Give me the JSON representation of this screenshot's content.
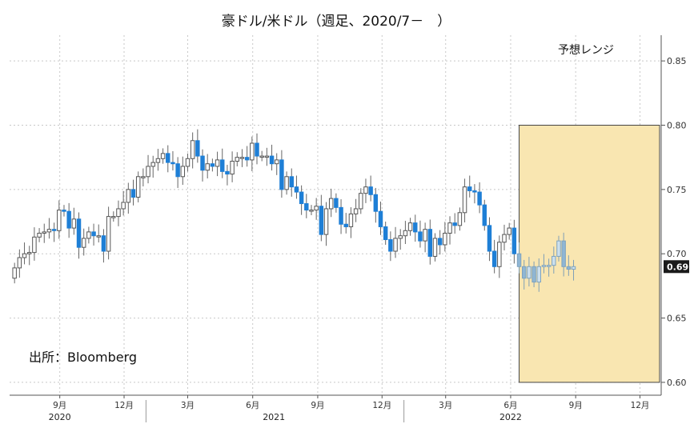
{
  "chart_data": {
    "type": "candlestick",
    "title": "豪ドル/米ドル（週足、2020/7－　）",
    "source_note": "出所：Bloomberg",
    "range_box": {
      "label": "予想レンジ",
      "x_from": "2022-06-13",
      "x_to": "2022-12-31",
      "y_from": 0.6,
      "y_to": 0.8
    },
    "last_value_label": "0.69",
    "last_value": 0.69,
    "ylim": [
      0.59,
      0.87
    ],
    "yticks": [
      {
        "value": 0.6,
        "label": "0.60"
      },
      {
        "value": 0.65,
        "label": "0.65"
      },
      {
        "value": 0.7,
        "label": "0.70"
      },
      {
        "value": 0.75,
        "label": "0.75"
      },
      {
        "value": 0.8,
        "label": "0.80"
      },
      {
        "value": 0.85,
        "label": "0.85"
      }
    ],
    "xlim": [
      "2020-06-22",
      "2022-12-31"
    ],
    "xticks": [
      {
        "date": "2020-09-01",
        "label": "9月"
      },
      {
        "date": "2020-12-01",
        "label": "12月"
      },
      {
        "date": "2021-03-01",
        "label": "3月"
      },
      {
        "date": "2021-06-01",
        "label": "6月"
      },
      {
        "date": "2021-09-01",
        "label": "9月"
      },
      {
        "date": "2021-12-01",
        "label": "12月"
      },
      {
        "date": "2022-03-01",
        "label": "3月"
      },
      {
        "date": "2022-06-01",
        "label": "6月"
      },
      {
        "date": "2022-09-01",
        "label": "9月"
      },
      {
        "date": "2022-12-01",
        "label": "12月"
      }
    ],
    "years": [
      {
        "label": "2020",
        "center": "2020-09-01"
      },
      {
        "label": "2021",
        "center": "2021-07-01"
      },
      {
        "label": "2022",
        "center": "2022-06-01"
      }
    ],
    "year_dividers": [
      "2021-01-01",
      "2022-01-01"
    ],
    "colors": {
      "up": "#ffffff",
      "up_edge": "#555555",
      "down": "#1e7fd6",
      "down_edge": "#1e7fd6",
      "projected_up": "#cde0ee",
      "projected_down": "#8fb6d4",
      "box_fill": "#f9e6b1",
      "box_edge": "#444444",
      "grid": "#c8c8c8"
    },
    "series_start": "2020-06-29",
    "series_week_days": 7,
    "projected_from": "2022-06-13",
    "closes": [
      0.689,
      0.697,
      0.7,
      0.701,
      0.713,
      0.716,
      0.717,
      0.719,
      0.718,
      0.734,
      0.733,
      0.72,
      0.727,
      0.705,
      0.712,
      0.717,
      0.714,
      0.714,
      0.702,
      0.729,
      0.729,
      0.735,
      0.74,
      0.75,
      0.744,
      0.76,
      0.76,
      0.768,
      0.771,
      0.774,
      0.778,
      0.771,
      0.77,
      0.76,
      0.768,
      0.774,
      0.788,
      0.776,
      0.765,
      0.77,
      0.768,
      0.773,
      0.764,
      0.762,
      0.772,
      0.775,
      0.775,
      0.773,
      0.786,
      0.776,
      0.776,
      0.776,
      0.77,
      0.773,
      0.75,
      0.76,
      0.752,
      0.748,
      0.739,
      0.734,
      0.734,
      0.737,
      0.715,
      0.735,
      0.743,
      0.736,
      0.723,
      0.721,
      0.731,
      0.735,
      0.747,
      0.752,
      0.746,
      0.733,
      0.721,
      0.711,
      0.702,
      0.712,
      0.714,
      0.718,
      0.724,
      0.717,
      0.71,
      0.719,
      0.698,
      0.712,
      0.707,
      0.716,
      0.724,
      0.722,
      0.732,
      0.752,
      0.749,
      0.748,
      0.738,
      0.722,
      0.702,
      0.69,
      0.709,
      0.715,
      0.72,
      0.7,
      0.69,
      0.681,
      0.69,
      0.678,
      0.69,
      0.691,
      0.691,
      0.698,
      0.71,
      0.69,
      0.688,
      0.69
    ],
    "opens": [
      0.681,
      0.689,
      0.697,
      0.7,
      0.701,
      0.713,
      0.716,
      0.717,
      0.719,
      0.718,
      0.734,
      0.733,
      0.72,
      0.727,
      0.705,
      0.712,
      0.717,
      0.714,
      0.714,
      0.702,
      0.729,
      0.729,
      0.735,
      0.74,
      0.75,
      0.744,
      0.76,
      0.76,
      0.768,
      0.771,
      0.774,
      0.778,
      0.771,
      0.77,
      0.76,
      0.768,
      0.774,
      0.788,
      0.776,
      0.765,
      0.77,
      0.768,
      0.773,
      0.764,
      0.762,
      0.772,
      0.775,
      0.775,
      0.773,
      0.786,
      0.776,
      0.776,
      0.776,
      0.77,
      0.773,
      0.75,
      0.76,
      0.752,
      0.748,
      0.739,
      0.734,
      0.734,
      0.737,
      0.715,
      0.735,
      0.743,
      0.736,
      0.723,
      0.721,
      0.731,
      0.735,
      0.747,
      0.752,
      0.746,
      0.733,
      0.721,
      0.711,
      0.702,
      0.712,
      0.714,
      0.718,
      0.724,
      0.717,
      0.71,
      0.719,
      0.698,
      0.712,
      0.707,
      0.716,
      0.724,
      0.722,
      0.732,
      0.752,
      0.749,
      0.748,
      0.738,
      0.722,
      0.702,
      0.69,
      0.709,
      0.715,
      0.72,
      0.7,
      0.69,
      0.681,
      0.69,
      0.678,
      0.69,
      0.691,
      0.691,
      0.698,
      0.71,
      0.69,
      0.688
    ]
  }
}
